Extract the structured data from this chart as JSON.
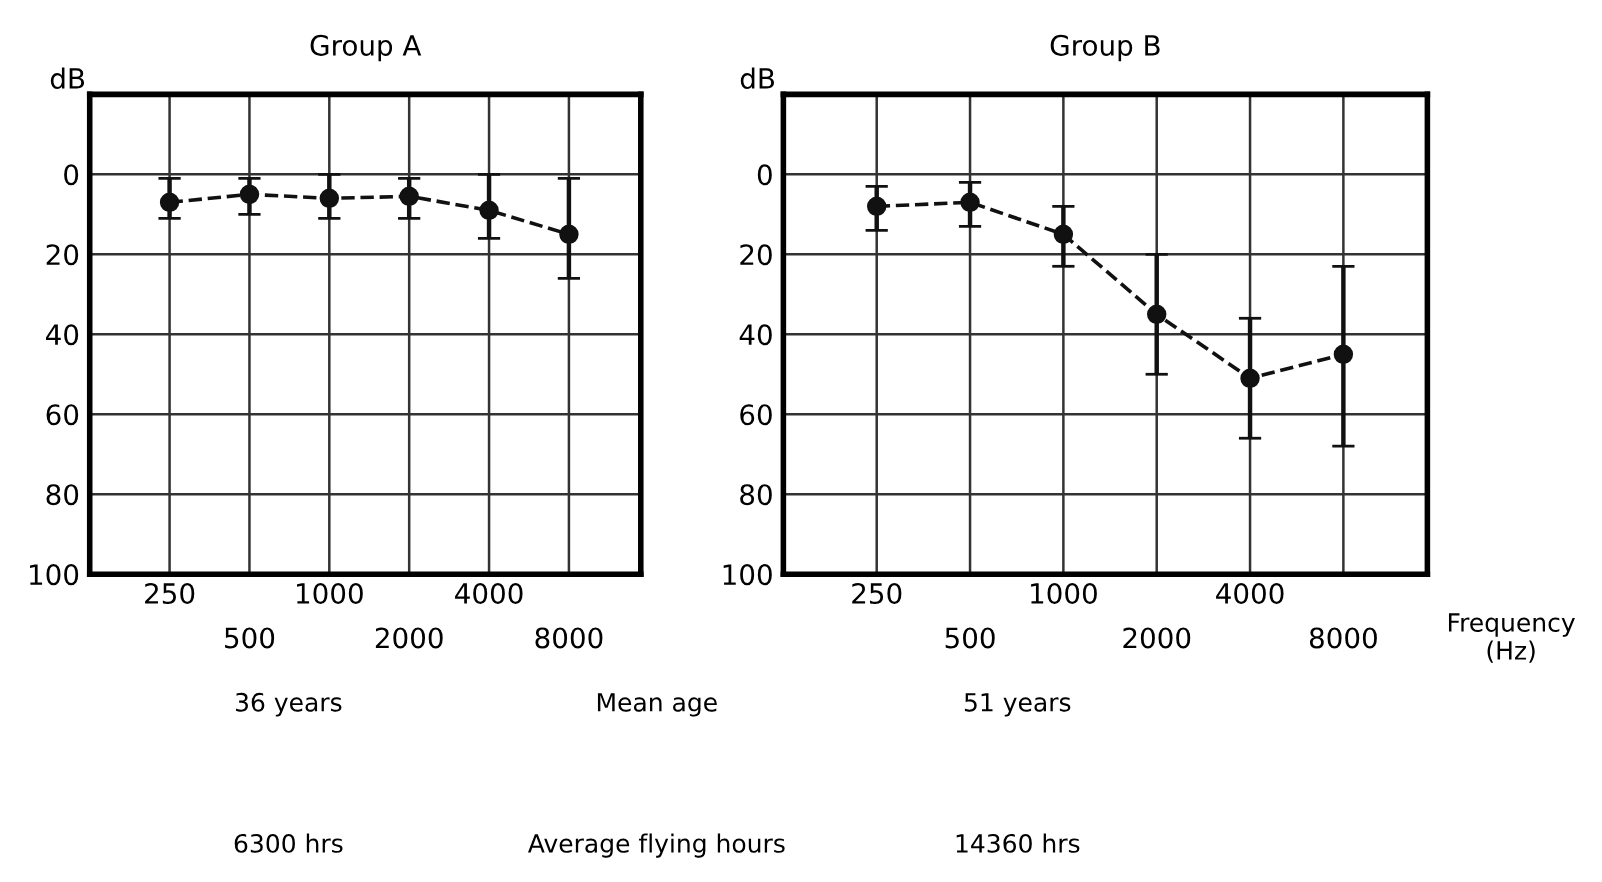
{
  "chart_data": [
    {
      "type": "line",
      "title": "Group A",
      "ylabel": "dB",
      "categories": [
        "250",
        "500",
        "1000",
        "2000",
        "4000",
        "8000"
      ],
      "series": [
        {
          "color": "#111111",
          "values": [
            7,
            5,
            6,
            5.5,
            9,
            15
          ],
          "errors": [
            [
              1,
              11
            ],
            [
              1,
              10
            ],
            [
              0,
              11
            ],
            [
              1,
              11
            ],
            [
              0,
              16
            ],
            [
              1,
              26
            ]
          ]
        }
      ],
      "ylim": [
        100,
        -20
      ],
      "yticks": [
        {
          "value": -20,
          "label": null
        },
        0,
        20,
        40,
        60,
        80,
        100
      ],
      "grid": true,
      "marker": "circle",
      "line_style": "dashed",
      "annotations": [
        "36 years",
        "Mean age",
        "51 years",
        "6300 hrs",
        "Average flying hours",
        "14360 hrs"
      ]
    },
    {
      "type": "line",
      "title": "Group B",
      "ylabel": "dB",
      "xlabel": "Frequency (Hz)",
      "categories": [
        "250",
        "500",
        "1000",
        "2000",
        "4000",
        "8000"
      ],
      "series": [
        {
          "color": "#111111",
          "values": [
            8,
            7,
            15,
            35,
            51,
            45
          ],
          "errors": [
            [
              3,
              14
            ],
            [
              2,
              13
            ],
            [
              8,
              23
            ],
            [
              20,
              50
            ],
            [
              36,
              66
            ],
            [
              23,
              68
            ]
          ]
        }
      ],
      "ylim": [
        100,
        -20
      ],
      "yticks": [
        {
          "value": -20,
          "label": null
        },
        0,
        20,
        40,
        60,
        80,
        100
      ],
      "grid": true,
      "marker": "circle",
      "line_style": "dashed"
    }
  ]
}
